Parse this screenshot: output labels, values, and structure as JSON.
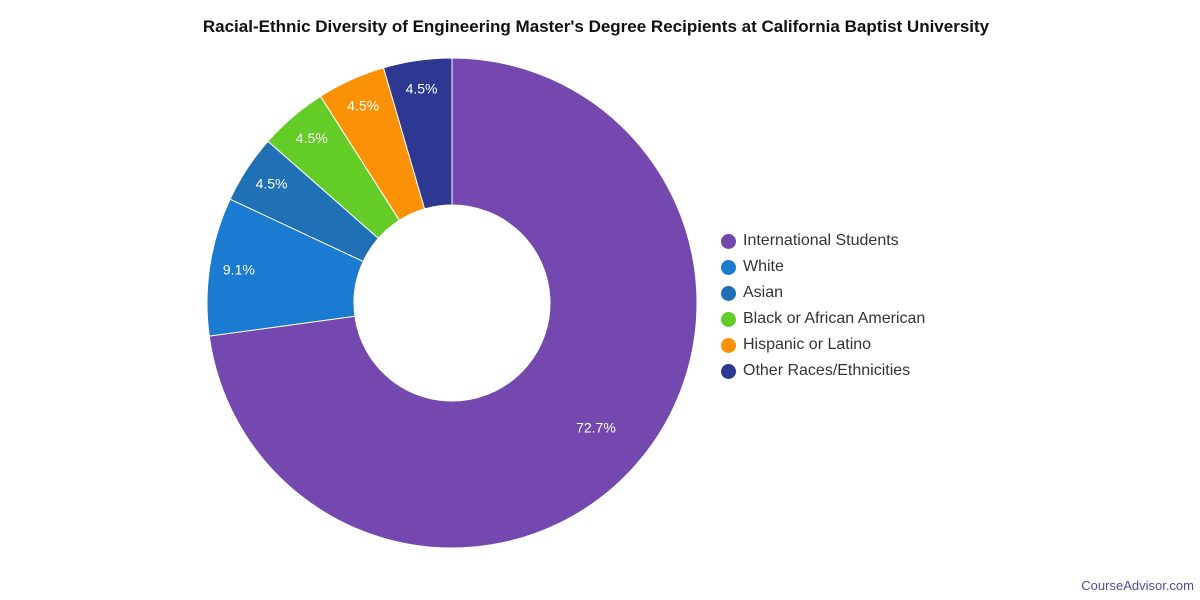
{
  "chart_data": {
    "type": "pie",
    "title": "Racial-Ethnic Diversity of Engineering Master's Degree Recipients at California Baptist University",
    "slices": [
      {
        "name": "International Students",
        "value": 72.7,
        "label": "72.7%",
        "color": "#7448ae"
      },
      {
        "name": "White",
        "value": 9.1,
        "label": "9.1%",
        "color": "#1b7bd0"
      },
      {
        "name": "Asian",
        "value": 4.5,
        "label": "4.5%",
        "color": "#1f70b5"
      },
      {
        "name": "Black or African American",
        "value": 4.5,
        "label": "4.5%",
        "color": "#63cc26"
      },
      {
        "name": "Hispanic or Latino",
        "value": 4.5,
        "label": "4.5%",
        "color": "#fb9206"
      },
      {
        "name": "Other Races/Ethnicities",
        "value": 4.5,
        "label": "4.5%",
        "color": "#2c3891"
      }
    ],
    "donut": true,
    "start": "top",
    "direction": "clockwise",
    "legend_position": "right"
  },
  "credit": "CourseAdvisor.com"
}
